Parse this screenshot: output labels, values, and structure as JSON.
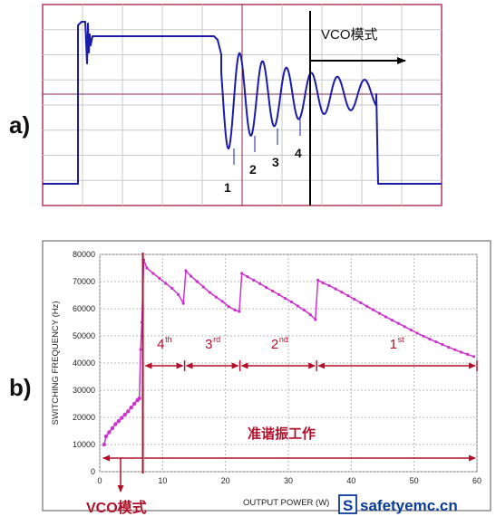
{
  "labels": {
    "panel_a": "a)",
    "panel_b": "b)",
    "vco_mode_top": "VCO模式",
    "vco_mode_bottom": "VCO模式",
    "quasi_resonant": "准谐振工作",
    "valley_markers": [
      "1",
      "2",
      "3",
      "4"
    ],
    "watermark_symbol": "S",
    "watermark_text": "safetyemc.cn"
  },
  "colors": {
    "waveform": "#1c1ca8",
    "frame_a": "#b2365a",
    "grid": "#c9c9c9",
    "curve_b": "#cc33cc",
    "annotation": "#b0102a",
    "plot_bg": "#ffffff",
    "watermark": "#0a3c9a"
  },
  "chart_data": [
    {
      "type": "line",
      "title": "",
      "xlabel": "",
      "ylabel": "",
      "grid": true,
      "description_markers": [
        "1",
        "2",
        "3",
        "4"
      ]
    },
    {
      "type": "line",
      "title": "",
      "xlabel": "OUTPUT POWER (W)",
      "ylabel": "SWITCHING FREQUENCY (Hz)",
      "xlim": [
        0,
        60
      ],
      "ylim": [
        0,
        80000
      ],
      "xticks": [
        "0",
        "10",
        "20",
        "30",
        "40",
        "50",
        "60"
      ],
      "yticks": [
        "0",
        "10000",
        "20000",
        "30000",
        "40000",
        "50000",
        "60000",
        "70000",
        "80000"
      ],
      "grid": true,
      "series": [
        {
          "name": "",
          "points": [
            [
              0.7,
              10000
            ],
            [
              1.0,
              13000
            ],
            [
              1.5,
              14500
            ],
            [
              2,
              16000
            ],
            [
              2.5,
              17500
            ],
            [
              3,
              18600
            ],
            [
              3.5,
              19800
            ],
            [
              4,
              21000
            ],
            [
              4.5,
              22200
            ],
            [
              5,
              23600
            ],
            [
              5.5,
              25000
            ],
            [
              6,
              26300
            ],
            [
              6.3,
              27000
            ],
            [
              6.5,
              45000
            ],
            [
              6.7,
              55000
            ],
            [
              7.0,
              78000
            ],
            [
              7.5,
              75000
            ],
            [
              8.5,
              73000
            ],
            [
              9.5,
              71200
            ],
            [
              10.5,
              69300
            ],
            [
              11.5,
              67500
            ],
            [
              12.5,
              65200
            ],
            [
              13.3,
              62000
            ],
            [
              13.7,
              74000
            ],
            [
              14.5,
              72000
            ],
            [
              15.5,
              70000
            ],
            [
              16.5,
              68000
            ],
            [
              17.5,
              66000
            ],
            [
              18.5,
              64300
            ],
            [
              19.5,
              62700
            ],
            [
              20.5,
              60800
            ],
            [
              21.5,
              59500
            ],
            [
              22.2,
              59000
            ],
            [
              22.6,
              73000
            ],
            [
              23.5,
              71800
            ],
            [
              24.5,
              70500
            ],
            [
              25.5,
              69200
            ],
            [
              26.5,
              67800
            ],
            [
              27.5,
              66500
            ],
            [
              28.5,
              65200
            ],
            [
              29.5,
              63800
            ],
            [
              30.5,
              62500
            ],
            [
              31.5,
              61000
            ],
            [
              32.5,
              59500
            ],
            [
              33.5,
              57800
            ],
            [
              34.3,
              56000
            ],
            [
              34.7,
              70500
            ],
            [
              35.5,
              69500
            ],
            [
              36.5,
              68500
            ],
            [
              37.5,
              67300
            ],
            [
              38.5,
              66100
            ],
            [
              39.5,
              64800
            ],
            [
              40.5,
              63500
            ],
            [
              41.5,
              62200
            ],
            [
              42.5,
              60900
            ],
            [
              43.5,
              59600
            ],
            [
              44.5,
              58300
            ],
            [
              45.5,
              57000
            ],
            [
              46.5,
              55800
            ],
            [
              47.5,
              54600
            ],
            [
              48.5,
              53400
            ],
            [
              49.5,
              52200
            ],
            [
              50.5,
              51000
            ],
            [
              51.5,
              49900
            ],
            [
              52.5,
              48800
            ],
            [
              53.5,
              47800
            ],
            [
              54.5,
              46800
            ],
            [
              55.5,
              45800
            ],
            [
              56.5,
              44900
            ],
            [
              57.5,
              44000
            ],
            [
              58.5,
              43200
            ],
            [
              59.5,
              42400
            ]
          ]
        }
      ],
      "vco_boundary_x": 7,
      "order_regions": [
        {
          "label": "4",
          "sup": "th",
          "x_from": 7,
          "x_to": 13.5
        },
        {
          "label": "3",
          "sup": "rd",
          "x_from": 13.5,
          "x_to": 22.3
        },
        {
          "label": "2",
          "sup": "nd",
          "x_from": 22.3,
          "x_to": 34.5
        },
        {
          "label": "1",
          "sup": "st",
          "x_from": 34.5,
          "x_to": 60
        }
      ]
    }
  ]
}
